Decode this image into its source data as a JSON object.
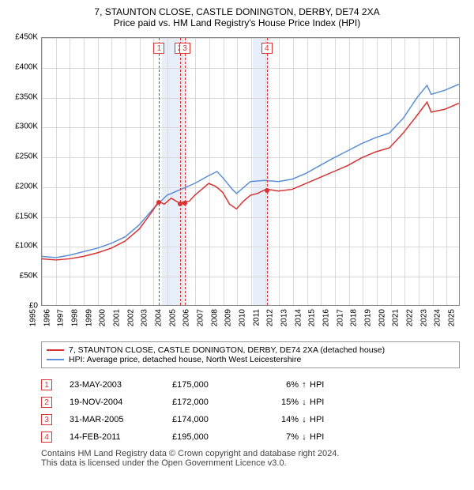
{
  "title_line1": "7, STAUNTON CLOSE, CASTLE DONINGTON, DERBY, DE74 2XA",
  "title_line2": "Price paid vs. HM Land Registry's House Price Index (HPI)",
  "chart": {
    "type": "line",
    "ylim": [
      0,
      450000
    ],
    "ytick_step": 50000,
    "yticks": [
      "£0",
      "£50K",
      "£100K",
      "£150K",
      "£200K",
      "£250K",
      "£300K",
      "£350K",
      "£400K",
      "£450K"
    ],
    "xlim": [
      1995,
      2025
    ],
    "xticks": [
      1995,
      1996,
      1997,
      1998,
      1999,
      2000,
      2001,
      2002,
      2003,
      2004,
      2005,
      2006,
      2007,
      2008,
      2009,
      2010,
      2011,
      2012,
      2013,
      2014,
      2015,
      2016,
      2017,
      2018,
      2019,
      2020,
      2021,
      2022,
      2023,
      2024,
      2025
    ],
    "grid_color": "#d9d9d9",
    "background_color": "#ffffff",
    "band_blue_color": "#e8effa",
    "band_blue_ranges": [
      [
        2003.6,
        2005.4
      ],
      [
        2010.1,
        2011.3
      ]
    ],
    "marker_line_color": "#d63333",
    "line_width": 1.5,
    "series": {
      "property": {
        "label": "7, STAUNTON CLOSE, CASTLE DONINGTON, DERBY, DE74 2XA (detached house)",
        "color": "#d63333",
        "data": [
          [
            1995.0,
            78000
          ],
          [
            1996.0,
            76000
          ],
          [
            1997.0,
            78000
          ],
          [
            1998.0,
            82000
          ],
          [
            1999.0,
            88000
          ],
          [
            2000.0,
            96000
          ],
          [
            2001.0,
            108000
          ],
          [
            2002.0,
            128000
          ],
          [
            2002.7,
            150000
          ],
          [
            2003.0,
            160000
          ],
          [
            2003.4,
            175000
          ],
          [
            2003.8,
            170000
          ],
          [
            2004.3,
            180000
          ],
          [
            2004.88,
            172000
          ],
          [
            2005.25,
            174000
          ],
          [
            2005.6,
            175000
          ],
          [
            2006.0,
            185000
          ],
          [
            2006.5,
            195000
          ],
          [
            2007.0,
            205000
          ],
          [
            2007.5,
            200000
          ],
          [
            2008.0,
            190000
          ],
          [
            2008.5,
            170000
          ],
          [
            2009.0,
            162000
          ],
          [
            2009.5,
            175000
          ],
          [
            2010.0,
            185000
          ],
          [
            2010.5,
            188000
          ],
          [
            2011.12,
            195000
          ],
          [
            2011.5,
            194000
          ],
          [
            2012.0,
            192000
          ],
          [
            2013.0,
            195000
          ],
          [
            2014.0,
            205000
          ],
          [
            2015.0,
            215000
          ],
          [
            2016.0,
            225000
          ],
          [
            2017.0,
            235000
          ],
          [
            2018.0,
            248000
          ],
          [
            2019.0,
            258000
          ],
          [
            2020.0,
            265000
          ],
          [
            2021.0,
            290000
          ],
          [
            2022.0,
            320000
          ],
          [
            2022.7,
            342000
          ],
          [
            2023.0,
            325000
          ],
          [
            2024.0,
            330000
          ],
          [
            2025.0,
            340000
          ]
        ]
      },
      "hpi": {
        "label": "HPI: Average price, detached house, North West Leicestershire",
        "color": "#5b8fd6",
        "data": [
          [
            1995.0,
            82000
          ],
          [
            1996.0,
            80000
          ],
          [
            1997.0,
            84000
          ],
          [
            1998.0,
            90000
          ],
          [
            1999.0,
            96000
          ],
          [
            2000.0,
            104000
          ],
          [
            2001.0,
            115000
          ],
          [
            2002.0,
            135000
          ],
          [
            2003.0,
            162000
          ],
          [
            2004.0,
            185000
          ],
          [
            2005.0,
            195000
          ],
          [
            2006.0,
            205000
          ],
          [
            2007.0,
            218000
          ],
          [
            2007.6,
            225000
          ],
          [
            2008.0,
            215000
          ],
          [
            2008.7,
            195000
          ],
          [
            2009.0,
            188000
          ],
          [
            2009.5,
            198000
          ],
          [
            2010.0,
            208000
          ],
          [
            2011.0,
            210000
          ],
          [
            2012.0,
            208000
          ],
          [
            2013.0,
            212000
          ],
          [
            2014.0,
            222000
          ],
          [
            2015.0,
            235000
          ],
          [
            2016.0,
            248000
          ],
          [
            2017.0,
            260000
          ],
          [
            2018.0,
            272000
          ],
          [
            2019.0,
            282000
          ],
          [
            2020.0,
            290000
          ],
          [
            2021.0,
            315000
          ],
          [
            2022.0,
            350000
          ],
          [
            2022.7,
            370000
          ],
          [
            2023.0,
            355000
          ],
          [
            2024.0,
            362000
          ],
          [
            2025.0,
            372000
          ]
        ]
      }
    },
    "sale_markers": [
      {
        "n": "1",
        "year": 2003.4,
        "price": 175000
      },
      {
        "n": "2",
        "year": 2004.88,
        "price": 172000
      },
      {
        "n": "3",
        "year": 2005.25,
        "price": 174000
      },
      {
        "n": "4",
        "year": 2011.12,
        "price": 195000
      }
    ]
  },
  "legend": {
    "items": [
      {
        "color": "#d63333",
        "label": "7, STAUNTON CLOSE, CASTLE DONINGTON, DERBY, DE74 2XA (detached house)"
      },
      {
        "color": "#5b8fd6",
        "label": "HPI: Average price, detached house, North West Leicestershire"
      }
    ]
  },
  "sales": [
    {
      "n": "1",
      "date": "23-MAY-2003",
      "price": "£175,000",
      "pct": "6%",
      "dir": "↑",
      "suffix": "HPI"
    },
    {
      "n": "2",
      "date": "19-NOV-2004",
      "price": "£172,000",
      "pct": "15%",
      "dir": "↓",
      "suffix": "HPI"
    },
    {
      "n": "3",
      "date": "31-MAR-2005",
      "price": "£174,000",
      "pct": "14%",
      "dir": "↓",
      "suffix": "HPI"
    },
    {
      "n": "4",
      "date": "14-FEB-2011",
      "price": "£195,000",
      "pct": "7%",
      "dir": "↓",
      "suffix": "HPI"
    }
  ],
  "footnote_line1": "Contains HM Land Registry data © Crown copyright and database right 2024.",
  "footnote_line2": "This data is licensed under the Open Government Licence v3.0."
}
